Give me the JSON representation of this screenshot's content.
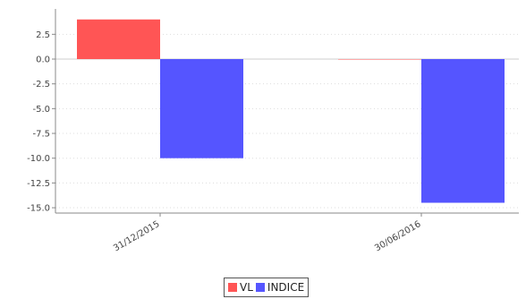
{
  "chart_data": {
    "type": "bar",
    "categories": [
      "31/12/2015",
      "30/06/2016"
    ],
    "series": [
      {
        "name": "VL",
        "color": "#ff5555",
        "values": [
          4.0,
          0.0
        ]
      },
      {
        "name": "INDICE",
        "color": "#5555ff",
        "values": [
          -10.0,
          -14.5
        ]
      }
    ],
    "yticks": [
      "2.5",
      "0.0",
      "-2.5",
      "-5.0",
      "-7.5",
      "-10.0",
      "-12.5",
      "-15.0"
    ],
    "ylim": [
      -15.5,
      5.0
    ],
    "grid": true,
    "legend_position": "bottom-center",
    "title": "",
    "xlabel": "",
    "ylabel": ""
  }
}
